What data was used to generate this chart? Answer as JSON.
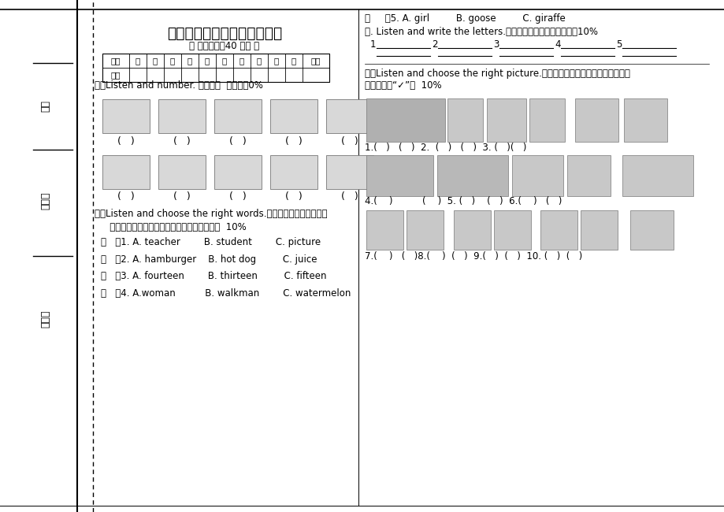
{
  "title": "小学三年级英语第二学期试卷",
  "subtitle": "（ 答卷时间：40 分钟 ）",
  "table_headers": [
    "题目",
    "一",
    "二",
    "三",
    "四",
    "五",
    "六",
    "七",
    "八",
    "九",
    "十",
    "总分"
  ],
  "row_label": "得分",
  "s1_title": "一．Listen and number. 听录音，  标号码。0%",
  "s2_title1": "二．Listen and choose the right words.听录音，把录音中提到的",
  "s2_title2": "   单词选出来，并把其编号写在题前的括号里。  10%",
  "s2_items": [
    "（   ）1. A. teacher        B. student        C. picture",
    "（   ）2. A. hamburger    B. hot dog         C. juice",
    "（   ）3. A. fourteen        B. thirteen         C. fifteen",
    "（   ）4. A.woman          B. walkman        C. watermelon"
  ],
  "s2_item5": "（     ）5. A. girl         B. goose         C. giraffe",
  "s3_title": "三. Listen and write the letters.听录音，写出字母的大小写。10%",
  "s3_numbers": [
    "1",
    "2",
    "3",
    "4",
    "5"
  ],
  "s4_title1": "四．Listen and choose the right picture.听录音，选择正确的图画，在其下边",
  "s4_title2": "的括号里打“✓”。  10%",
  "s4_row1_labels": "1.(   )   (   )  2.  (   )   (   )  3. (   )(   )",
  "s4_row2_labels": "4.(    )          (    )  5. (   )    (   )  6.(    )   (   )",
  "s4_row3_labels": "7.(    )   (   )8.(    )  (   )  9.(   )  (   )  10. (   )  (   )",
  "left_label1": "号：",
  "left_label2": "姓名：",
  "left_label3": "班别："
}
